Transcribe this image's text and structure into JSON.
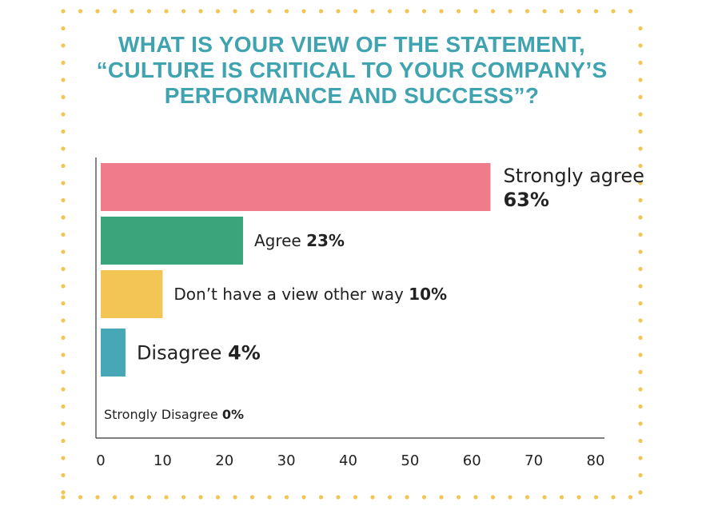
{
  "chart_data": {
    "type": "bar",
    "orientation": "horizontal",
    "title": "WHAT IS YOUR VIEW OF THE STATEMENT, “CULTURE IS CRITICAL TO YOUR COMPANY’S PERFORMANCE AND SUCCESS”?",
    "categories": [
      "Strongly agree",
      "Agree",
      "Don’t have a view other way",
      "Disagree",
      "Strongly Disagree"
    ],
    "values": [
      63,
      23,
      10,
      4,
      0
    ],
    "value_labels": [
      "63%",
      "23%",
      "10%",
      "4%",
      "0%"
    ],
    "colors": [
      "#f07b8b",
      "#3aa57a",
      "#f2c554",
      "#47a7b7",
      "#cccccc"
    ],
    "xlim": [
      0,
      80
    ],
    "xticks": [
      "0",
      "10",
      "20",
      "30",
      "40",
      "50",
      "60",
      "70",
      "80"
    ],
    "grid": false,
    "legend": "none"
  },
  "style": {
    "title_color": "#3fa3b0",
    "border_dot_color": "#f2c554"
  }
}
